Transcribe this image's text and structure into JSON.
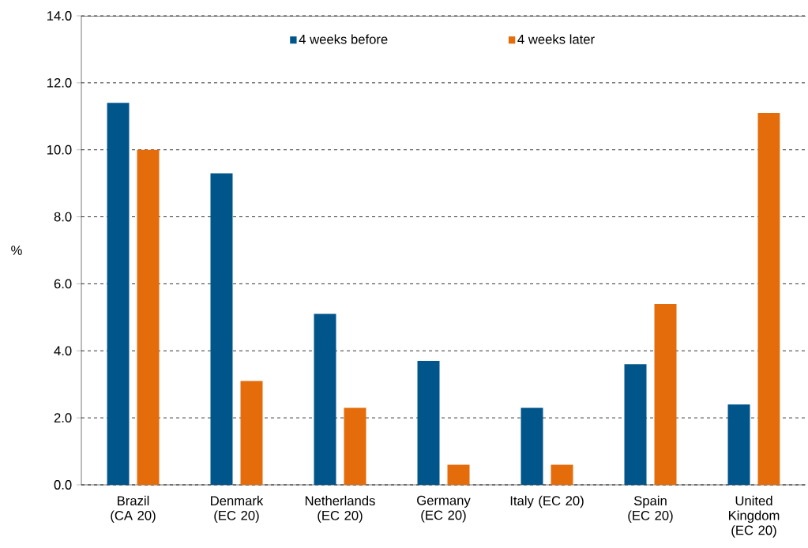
{
  "chart_data": {
    "type": "bar",
    "ylabel": "%",
    "categories": [
      "Brazil (CA 20)",
      "Denmark (EC 20)",
      "Netherlands (EC 20)",
      "Germany (EC 20)",
      "Italy (EC 20)",
      "Spain (EC 20)",
      "United Kingdom (EC 20)"
    ],
    "series": [
      {
        "name": "4 weeks before",
        "color": "#00558b",
        "values": [
          11.4,
          9.3,
          5.1,
          3.7,
          2.3,
          3.6,
          2.4
        ]
      },
      {
        "name": "4 weeks later",
        "color": "#e46c0a",
        "values": [
          10.0,
          3.1,
          2.3,
          0.6,
          0.6,
          5.4,
          11.1
        ]
      }
    ],
    "ylim": [
      0,
      14
    ],
    "yticks": [
      {
        "value": 0,
        "label": "0.0"
      },
      {
        "value": 2,
        "label": "2.0"
      },
      {
        "value": 4,
        "label": "4.0"
      },
      {
        "value": 6,
        "label": "6.0"
      },
      {
        "value": 8,
        "label": "8.0"
      },
      {
        "value": 10,
        "label": "10.0"
      },
      {
        "value": 12,
        "label": "12.0"
      },
      {
        "value": 14,
        "label": "14.0"
      }
    ],
    "grid": "y",
    "legend": "top"
  }
}
